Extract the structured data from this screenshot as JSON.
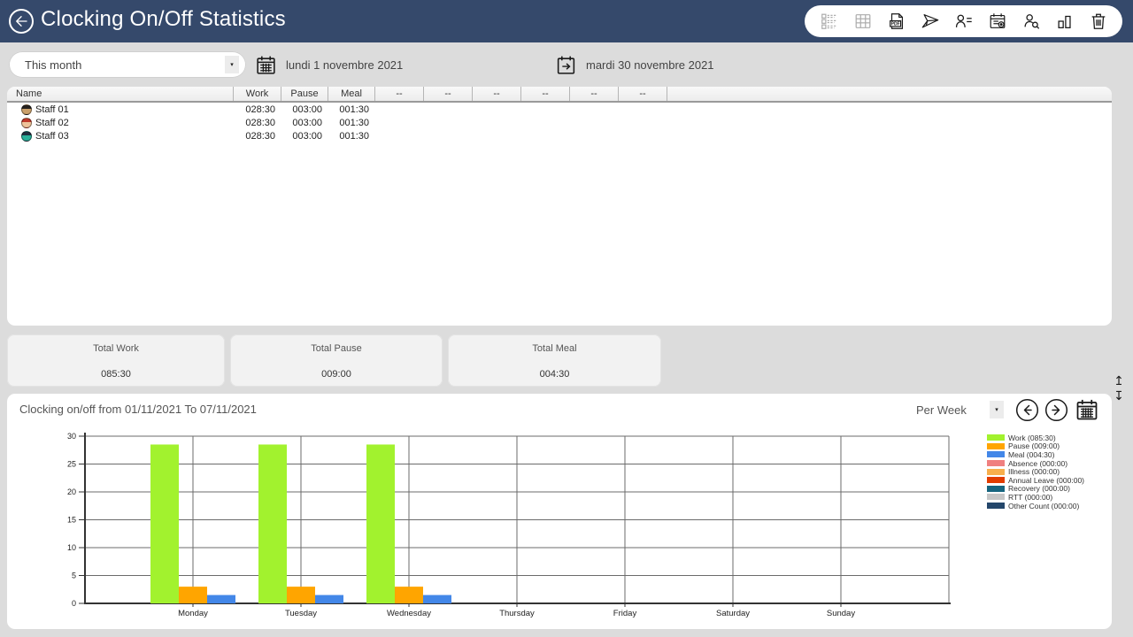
{
  "header": {
    "title": "Clocking On/Off Statistics",
    "toolbar_icons": [
      "report-list",
      "report-grid",
      "export-pdf",
      "send-report",
      "staff-details",
      "schedule-report",
      "staff-search",
      "statistics",
      "delete"
    ],
    "disabled_toolbar_icons": [
      "report-list",
      "report-grid"
    ]
  },
  "filter_bar": {
    "period_selector": "This month",
    "date_from": "lundi 1 novembre 2021",
    "date_to": "mardi 30 novembre 2021"
  },
  "staff_table": {
    "columns": [
      "Name",
      "Work",
      "Pause",
      "Meal",
      "--",
      "--",
      "--",
      "--",
      "--",
      "--"
    ],
    "rows": [
      {
        "name": "Staff 01",
        "work": "028:30",
        "pause": "003:00",
        "meal": "001:30",
        "avatar_hair": "#26221f",
        "avatar_skin": "#caa06a"
      },
      {
        "name": "Staff 02",
        "work": "028:30",
        "pause": "003:00",
        "meal": "001:30",
        "avatar_hair": "#c1392b",
        "avatar_skin": "#eec39a"
      },
      {
        "name": "Staff 03",
        "work": "028:30",
        "pause": "003:00",
        "meal": "001:30",
        "avatar_hair": "#203040",
        "avatar_skin": "#2ab09a"
      }
    ]
  },
  "totals": {
    "cards": [
      {
        "label": "Total Work",
        "value": "085:30"
      },
      {
        "label": "Total Pause",
        "value": "009:00"
      },
      {
        "label": "Total Meal",
        "value": "004:30"
      }
    ]
  },
  "chart_section": {
    "title": "Clocking on/off from 01/11/2021 To 07/11/2021",
    "period_mode": "Per Week"
  },
  "chart_data": {
    "type": "bar",
    "title": "Clocking on/off from 01/11/2021 To 07/11/2021",
    "categories": [
      "Monday",
      "Tuesday",
      "Wednesday",
      "Thursday",
      "Friday",
      "Saturday",
      "Sunday"
    ],
    "series": [
      {
        "name": "Work (085:30)",
        "color": "#A2F22E",
        "values": [
          28.5,
          28.5,
          28.5,
          0,
          0,
          0,
          0
        ]
      },
      {
        "name": "Pause (009:00)",
        "color": "#FFA500",
        "values": [
          3,
          3,
          3,
          0,
          0,
          0,
          0
        ]
      },
      {
        "name": "Meal (004:30)",
        "color": "#4387E8",
        "values": [
          1.5,
          1.5,
          1.5,
          0,
          0,
          0,
          0
        ]
      },
      {
        "name": "Absence (000:00)",
        "color": "#F08080",
        "values": [
          0,
          0,
          0,
          0,
          0,
          0,
          0
        ]
      },
      {
        "name": "Illness (000:00)",
        "color": "#F8AF4C",
        "values": [
          0,
          0,
          0,
          0,
          0,
          0,
          0
        ]
      },
      {
        "name": "Annual Leave (000:00)",
        "color": "#E23D00",
        "values": [
          0,
          0,
          0,
          0,
          0,
          0,
          0
        ]
      },
      {
        "name": "Recovery (000:00)",
        "color": "#17657F",
        "values": [
          0,
          0,
          0,
          0,
          0,
          0,
          0
        ]
      },
      {
        "name": "RTT (000:00)",
        "color": "#C7C7C7",
        "values": [
          0,
          0,
          0,
          0,
          0,
          0,
          0
        ]
      },
      {
        "name": "Other Count (000:00)",
        "color": "#24476B",
        "values": [
          0,
          0,
          0,
          0,
          0,
          0,
          0
        ]
      }
    ],
    "ylim": [
      0,
      30
    ],
    "ytick_step": 5,
    "grid": true,
    "legend_position": "right"
  }
}
